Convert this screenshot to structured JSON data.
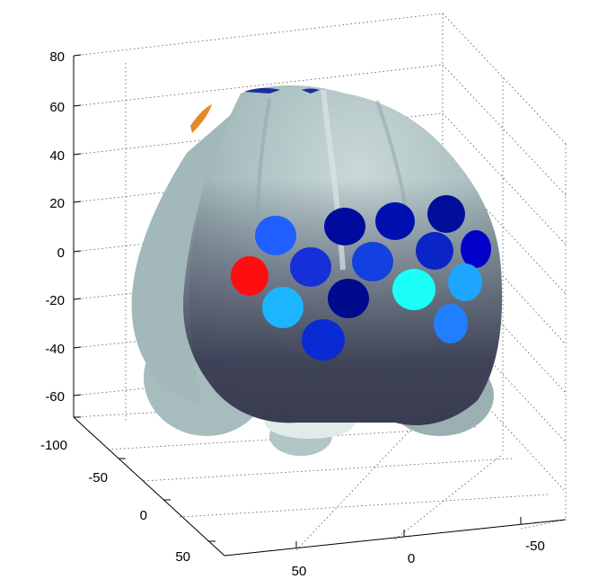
{
  "axes": {
    "z_ticks": [
      "80",
      "60",
      "40",
      "20",
      "0",
      "-20",
      "-40",
      "-60"
    ],
    "y_ticks": [
      "-100",
      "-50",
      "0",
      "50"
    ],
    "x_ticks": [
      "50",
      "0",
      "-50"
    ]
  },
  "colors": {
    "background": "#ffffff",
    "head_surface": "#aec3c3",
    "head_shadow": "#3e4156",
    "electrode_palette": [
      "#ff1a1a",
      "#1a6aff",
      "#0019c8",
      "#00109a",
      "#0a2ad6",
      "#1ab4ff",
      "#19fff7",
      "#2a8cff"
    ]
  },
  "electrodes": [
    {
      "label": "",
      "color": "#ff0d10"
    },
    {
      "label": "",
      "color": "#1f5fff"
    },
    {
      "label": "",
      "color": "#000b9e"
    },
    {
      "label": "",
      "color": "#0010b0"
    },
    {
      "label": "",
      "color": "#000e9a"
    },
    {
      "label": "",
      "color": "#1530d8"
    },
    {
      "label": "",
      "color": "#0a24c8"
    },
    {
      "label": "",
      "color": "#1340e0"
    },
    {
      "label": "",
      "color": "#0000c8"
    },
    {
      "label": "",
      "color": "#0a2ad4"
    },
    {
      "label": "",
      "color": "#1bb6ff"
    },
    {
      "label": "",
      "color": "#000a8c"
    },
    {
      "label": "",
      "color": "#1bfff8"
    },
    {
      "label": "",
      "color": "#1ca6ff"
    },
    {
      "label": "",
      "color": "#1f7fff"
    },
    {
      "label": "",
      "color": "#0d2ee2"
    }
  ]
}
